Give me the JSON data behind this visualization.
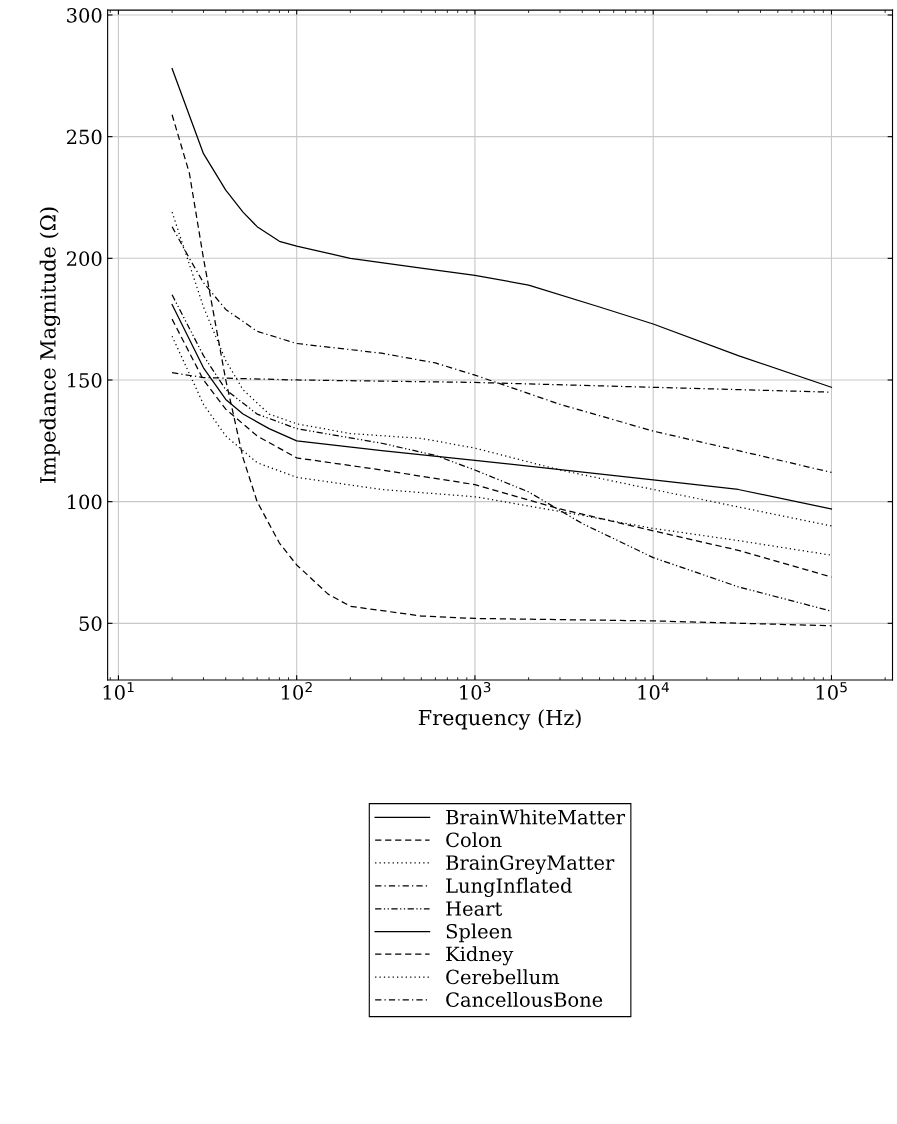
{
  "chart_data": {
    "type": "line",
    "xlabel": "Frequency (Hz)",
    "ylabel": "Impedance Magnitude (Ω)",
    "log": "x",
    "grid": true,
    "legend": "bottom",
    "xlim": [
      8.7,
      220000
    ],
    "xticks": [
      {
        "value": 10,
        "label": "10$^{1}$"
      },
      {
        "value": 100,
        "label": "10$^{2}$"
      },
      {
        "value": 1000,
        "label": "10$^{3}$"
      },
      {
        "value": 10000,
        "label": "10$^{4}$"
      },
      {
        "value": 100000,
        "label": "10$^{5}$"
      }
    ],
    "ylim": [
      26.7,
      302
    ],
    "yticks": [
      50,
      100,
      150,
      200,
      250,
      300
    ],
    "series": [
      {
        "name": "BrainWhiteMatter",
        "color": "#000000",
        "line_style": "solid",
        "x": [
          20,
          30,
          40,
          50,
          60,
          80,
          100,
          200,
          500,
          1000,
          2000,
          5000,
          10000,
          30000,
          100000
        ],
        "values": [
          278,
          243,
          228,
          219,
          213,
          207,
          205,
          200,
          196,
          193,
          189,
          180,
          173,
          160,
          147
        ]
      },
      {
        "name": "Colon",
        "color": "#000000",
        "line_style": "dashed",
        "x": [
          20,
          25,
          30,
          40,
          50,
          60,
          80,
          100,
          150,
          200,
          500,
          1000,
          10000,
          100000
        ],
        "values": [
          259,
          235,
          200,
          150,
          118,
          100,
          83,
          74,
          62,
          57,
          53,
          52,
          51,
          49
        ]
      },
      {
        "name": "BrainGreyMatter",
        "color": "#000000",
        "line_style": "dotted",
        "x": [
          20,
          30,
          40,
          50,
          70,
          100,
          200,
          500,
          1000,
          3000,
          10000,
          100000
        ],
        "values": [
          219,
          180,
          158,
          146,
          136,
          132,
          128,
          126,
          122,
          113,
          105,
          90
        ]
      },
      {
        "name": "LungInflated",
        "color": "#000000",
        "line_style": "dashdot",
        "x": [
          20,
          25,
          30,
          40,
          60,
          100,
          300,
          600,
          1000,
          3000,
          10000,
          30000,
          100000
        ],
        "values": [
          213,
          200,
          190,
          179,
          170,
          165,
          161,
          157,
          152,
          140,
          129,
          121,
          112
        ]
      },
      {
        "name": "Heart",
        "color": "#000000",
        "line_style": "dashdotdot",
        "x": [
          20,
          30,
          40,
          60,
          100,
          300,
          600,
          1000,
          2000,
          4000,
          10000,
          30000,
          100000
        ],
        "values": [
          185,
          160,
          146,
          136,
          130,
          124,
          119,
          113,
          104,
          91,
          77,
          65,
          55
        ]
      },
      {
        "name": "Spleen",
        "color": "#000000",
        "line_style": "solid",
        "x": [
          20,
          30,
          40,
          50,
          70,
          100,
          300,
          1000,
          10000,
          30000,
          100000
        ],
        "values": [
          181,
          155,
          142,
          136,
          130,
          125,
          121,
          117,
          109,
          105,
          97
        ]
      },
      {
        "name": "Kidney",
        "color": "#000000",
        "line_style": "dashed",
        "x": [
          20,
          30,
          40,
          60,
          100,
          300,
          1000,
          3000,
          10000,
          30000,
          100000
        ],
        "values": [
          175,
          150,
          138,
          127,
          118,
          113,
          107,
          97,
          88,
          80,
          69
        ]
      },
      {
        "name": "Cerebellum",
        "color": "#000000",
        "line_style": "dotted",
        "x": [
          20,
          30,
          40,
          60,
          100,
          300,
          1000,
          3000,
          10000,
          30000,
          100000
        ],
        "values": [
          168,
          140,
          127,
          116,
          110,
          105,
          102,
          96,
          89,
          84,
          78
        ]
      },
      {
        "name": "CancellousBone",
        "color": "#000000",
        "line_style": "dashdot",
        "x": [
          20,
          30,
          100,
          1000,
          10000,
          100000
        ],
        "values": [
          153,
          151,
          150,
          149,
          147,
          145
        ]
      }
    ]
  }
}
